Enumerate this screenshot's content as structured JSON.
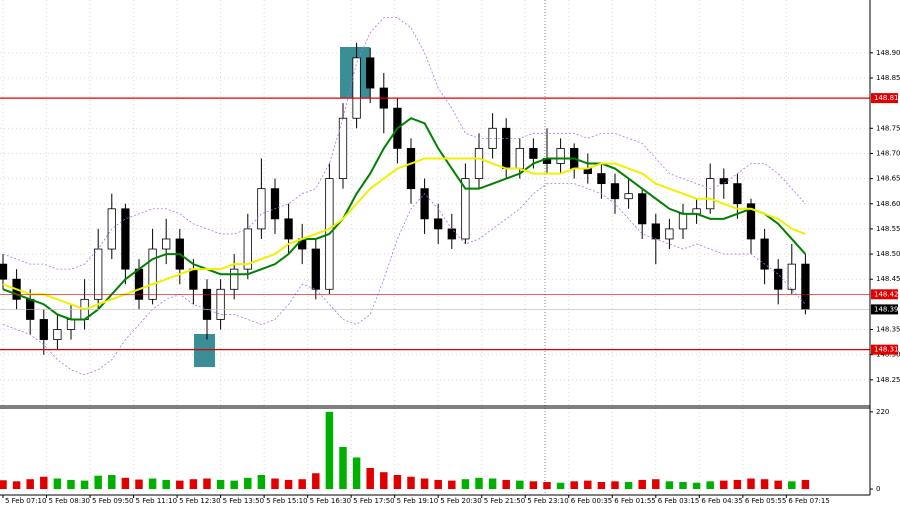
{
  "chart_data": {
    "type": "candlestick",
    "xlim": [
      -0.22,
      63.75
    ],
    "ylim": [
      148.198,
      149.005
    ],
    "vlim": [
      -17,
      231
    ],
    "grid": true,
    "up_color": "#ffffff",
    "down_color": "#000000",
    "volume_up_color": "#00b000",
    "volume_down_color": "#e00000",
    "xticks": [
      {
        "value": 0,
        "label": "5 Feb 07:10"
      },
      {
        "value": 3.2,
        "label": "5 Feb 08:30"
      },
      {
        "value": 6.4,
        "label": "5 Feb 09:50"
      },
      {
        "value": 9.6,
        "label": "5 Feb 11:10"
      },
      {
        "value": 12.8,
        "label": "5 Feb 12:30"
      },
      {
        "value": 16,
        "label": "5 Feb 13:50"
      },
      {
        "value": 19.2,
        "label": "5 Feb 15:10"
      },
      {
        "value": 22.4,
        "label": "5 Feb 16:30"
      },
      {
        "value": 25.6,
        "label": "5 Feb 17:50"
      },
      {
        "value": 28.8,
        "label": "5 Feb 19:10"
      },
      {
        "value": 32,
        "label": "5 Feb 20:30"
      },
      {
        "value": 35.2,
        "label": "5 Feb 21:50"
      },
      {
        "value": 38.4,
        "label": "5 Feb 23:10"
      },
      {
        "value": 41.6,
        "label": "6 Feb 00:35"
      },
      {
        "value": 44.8,
        "label": "6 Feb 01:55"
      },
      {
        "value": 48,
        "label": "6 Feb 03:15"
      },
      {
        "value": 51.2,
        "label": "6 Feb 04:35"
      },
      {
        "value": 54.4,
        "label": "6 Feb 05:55"
      },
      {
        "value": 57.6,
        "label": "6 Feb 07:15"
      }
    ],
    "yticks": [
      148.25,
      {
        "value": 148.3,
        "label": "148.30"
      },
      148.35,
      148.45,
      {
        "value": 148.5,
        "label": "148.50"
      },
      148.55,
      {
        "value": 148.6,
        "label": "148.60"
      },
      148.65,
      {
        "value": 148.7,
        "label": "148.70"
      },
      148.75,
      148.85,
      {
        "value": 148.9,
        "label": "148.90"
      }
    ],
    "vticks": [
      220,
      0
    ],
    "levels": [
      {
        "value": 148.81,
        "label": "148.81",
        "color": "#e00000"
      },
      {
        "value": 148.42,
        "label": "148.42",
        "color": "#e00000"
      },
      {
        "value": 148.31,
        "label": "148.31",
        "color": "#e00000"
      }
    ],
    "last": {
      "value": 148.39,
      "label": "148.39",
      "color": "#000000"
    },
    "open": [
      148.48,
      148.45,
      148.41,
      148.37,
      148.33,
      148.35,
      148.37,
      148.41,
      148.51,
      148.59,
      148.47,
      148.41,
      148.51,
      148.53,
      148.47,
      148.43,
      148.37,
      148.43,
      148.47,
      148.55,
      148.63,
      148.57,
      148.53,
      148.51,
      148.43,
      148.65,
      148.77,
      148.89,
      148.83,
      148.79,
      148.71,
      148.63,
      148.57,
      148.55,
      148.53,
      148.65,
      148.71,
      148.75,
      148.67,
      148.71,
      148.69,
      148.68,
      148.71,
      148.67,
      148.66,
      148.64,
      148.61,
      148.62,
      148.56,
      148.53,
      148.55,
      148.58,
      148.59,
      148.65,
      148.64,
      148.6,
      148.53,
      148.47,
      148.43,
      148.48
    ],
    "high": [
      148.5,
      148.47,
      148.43,
      148.39,
      148.38,
      148.4,
      148.45,
      148.55,
      148.62,
      148.6,
      148.49,
      148.55,
      148.57,
      148.55,
      148.49,
      148.45,
      148.45,
      148.5,
      148.58,
      148.69,
      148.65,
      148.6,
      148.56,
      148.53,
      148.68,
      148.8,
      148.92,
      148.91,
      148.86,
      148.81,
      148.73,
      148.65,
      148.6,
      148.58,
      148.68,
      148.74,
      148.78,
      148.77,
      148.73,
      148.73,
      148.75,
      148.73,
      148.72,
      148.7,
      148.68,
      148.66,
      148.65,
      148.63,
      148.58,
      148.57,
      148.6,
      148.61,
      148.68,
      148.67,
      148.66,
      148.61,
      148.55,
      148.49,
      148.52,
      148.5
    ],
    "low": [
      148.43,
      148.39,
      148.34,
      148.3,
      148.31,
      148.33,
      148.35,
      148.39,
      148.49,
      148.44,
      148.39,
      148.4,
      148.48,
      148.44,
      148.4,
      148.33,
      148.35,
      148.41,
      148.45,
      148.53,
      148.54,
      148.5,
      148.48,
      148.41,
      148.42,
      148.63,
      148.75,
      148.8,
      148.74,
      148.68,
      148.6,
      148.54,
      148.52,
      148.51,
      148.52,
      148.63,
      148.69,
      148.65,
      148.65,
      148.67,
      148.66,
      148.66,
      148.65,
      148.64,
      148.61,
      148.58,
      148.59,
      148.53,
      148.48,
      148.51,
      148.53,
      148.56,
      148.58,
      148.61,
      148.57,
      148.5,
      148.44,
      148.4,
      148.42,
      148.38
    ],
    "close": [
      148.45,
      148.41,
      148.37,
      148.33,
      148.35,
      148.37,
      148.41,
      148.51,
      148.59,
      148.47,
      148.41,
      148.51,
      148.53,
      148.47,
      148.43,
      148.37,
      148.43,
      148.47,
      148.55,
      148.63,
      148.57,
      148.53,
      148.51,
      148.43,
      148.65,
      148.77,
      148.89,
      148.83,
      148.79,
      148.71,
      148.63,
      148.57,
      148.55,
      148.53,
      148.65,
      148.71,
      148.75,
      148.67,
      148.71,
      148.69,
      148.68,
      148.71,
      148.67,
      148.66,
      148.64,
      148.61,
      148.62,
      148.56,
      148.53,
      148.55,
      148.58,
      148.59,
      148.65,
      148.64,
      148.6,
      148.53,
      148.47,
      148.43,
      148.48,
      148.39
    ],
    "volume": [
      25,
      22,
      28,
      35,
      30,
      26,
      24,
      38,
      40,
      32,
      27,
      30,
      26,
      24,
      28,
      30,
      26,
      24,
      32,
      40,
      30,
      26,
      28,
      45,
      220,
      120,
      90,
      60,
      48,
      40,
      35,
      30,
      26,
      24,
      28,
      32,
      30,
      26,
      24,
      22,
      20,
      18,
      22,
      24,
      20,
      22,
      20,
      26,
      28,
      22,
      20,
      18,
      22,
      24,
      26,
      30,
      28,
      24,
      22,
      26
    ],
    "lines": [
      {
        "color": "#008000",
        "width": 2,
        "values": [
          148.43,
          148.42,
          148.41,
          148.4,
          148.38,
          148.37,
          148.37,
          148.39,
          148.42,
          148.45,
          148.47,
          148.49,
          148.5,
          148.5,
          148.48,
          148.47,
          148.46,
          148.46,
          148.46,
          148.47,
          148.48,
          148.5,
          148.53,
          148.53,
          148.54,
          148.57,
          148.62,
          148.66,
          148.71,
          148.75,
          148.77,
          148.76,
          148.71,
          148.67,
          148.63,
          148.63,
          148.64,
          148.65,
          148.66,
          148.68,
          148.69,
          148.69,
          148.69,
          148.68,
          148.68,
          148.67,
          148.65,
          148.63,
          148.61,
          148.59,
          148.58,
          148.58,
          148.57,
          148.57,
          148.58,
          148.59,
          148.58,
          148.56,
          148.53,
          148.5
        ]
      },
      {
        "color": "#f0f000",
        "width": 2,
        "values": [
          148.44,
          148.43,
          148.42,
          148.42,
          148.41,
          148.4,
          148.39,
          148.4,
          148.41,
          148.42,
          148.43,
          148.44,
          148.45,
          148.46,
          148.47,
          148.47,
          148.47,
          148.48,
          148.48,
          148.49,
          148.5,
          148.52,
          148.53,
          148.54,
          148.55,
          148.57,
          148.6,
          148.63,
          148.65,
          148.67,
          148.68,
          148.69,
          148.69,
          148.69,
          148.69,
          148.69,
          148.68,
          148.67,
          148.67,
          148.66,
          148.66,
          148.66,
          148.67,
          148.67,
          148.68,
          148.68,
          148.67,
          148.66,
          148.64,
          148.63,
          148.62,
          148.61,
          148.61,
          148.6,
          148.59,
          148.59,
          148.58,
          148.57,
          148.55,
          148.54
        ]
      },
      {
        "color": "#b070e0",
        "width": 0.8,
        "dash": true,
        "values": [
          148.5,
          148.49,
          148.48,
          148.48,
          148.47,
          148.47,
          148.48,
          148.51,
          148.55,
          148.57,
          148.58,
          148.59,
          148.59,
          148.58,
          148.56,
          148.55,
          148.54,
          148.54,
          148.55,
          148.58,
          148.59,
          148.6,
          148.62,
          148.63,
          148.68,
          148.77,
          148.88,
          148.94,
          148.97,
          148.97,
          148.95,
          148.9,
          148.83,
          148.79,
          148.74,
          148.73,
          148.73,
          148.73,
          148.73,
          148.74,
          148.74,
          148.74,
          148.74,
          148.73,
          148.74,
          148.74,
          148.73,
          148.72,
          148.69,
          148.66,
          148.65,
          148.64,
          148.63,
          148.64,
          148.66,
          148.68,
          148.68,
          148.66,
          148.63,
          148.6
        ]
      },
      {
        "color": "#b070e0",
        "width": 0.8,
        "dash": true,
        "values": [
          148.36,
          148.35,
          148.34,
          148.32,
          148.29,
          148.27,
          148.26,
          148.27,
          148.29,
          148.33,
          148.36,
          148.39,
          148.41,
          148.42,
          148.4,
          148.39,
          148.38,
          148.38,
          148.37,
          148.36,
          148.37,
          148.4,
          148.44,
          148.43,
          148.4,
          148.37,
          148.36,
          148.38,
          148.45,
          148.53,
          148.59,
          148.62,
          148.59,
          148.55,
          148.52,
          148.53,
          148.55,
          148.57,
          148.59,
          148.62,
          148.64,
          148.64,
          148.64,
          148.63,
          148.62,
          148.6,
          148.57,
          148.54,
          148.53,
          148.52,
          148.51,
          148.52,
          148.51,
          148.5,
          148.5,
          148.5,
          148.48,
          148.46,
          148.43,
          148.4
        ]
      }
    ]
  }
}
